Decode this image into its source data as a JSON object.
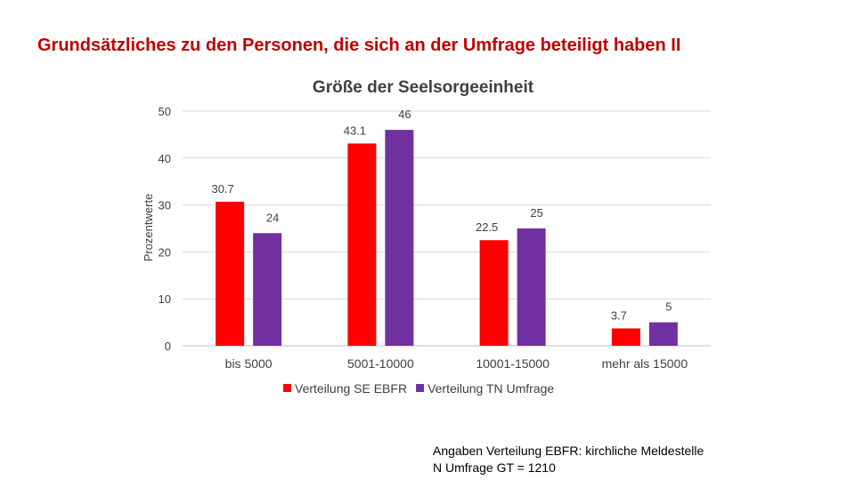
{
  "slide": {
    "title": "Grundsätzliches zu den Personen, die sich an der Umfrage beteiligt haben II"
  },
  "note": {
    "line1": "Angaben Verteilung EBFR: kirchliche Meldestelle",
    "line2": "N Umfrage GT = 1210"
  },
  "chart_data": {
    "type": "bar",
    "title": "Größe der Seelsorgeeinheit",
    "xlabel": "",
    "ylabel": "Prozentwerte",
    "ylim": [
      0,
      50
    ],
    "yticks": [
      0,
      10,
      20,
      30,
      40,
      50
    ],
    "grid": true,
    "legend_position": "bottom",
    "categories": [
      "bis 5000",
      "5001-10000",
      "10001-15000",
      "mehr als 15000"
    ],
    "series": [
      {
        "name": "Verteilung SE EBFR",
        "color": "#ff0000",
        "values": [
          30.7,
          43.1,
          22.5,
          3.7
        ],
        "labels": [
          "30.7",
          "43.1",
          "22.5",
          "3.7"
        ]
      },
      {
        "name": "Verteilung TN Umfrage",
        "color": "#7030a0",
        "values": [
          24,
          46,
          25,
          5
        ],
        "labels": [
          "24",
          "46",
          "25",
          "5"
        ]
      }
    ]
  }
}
